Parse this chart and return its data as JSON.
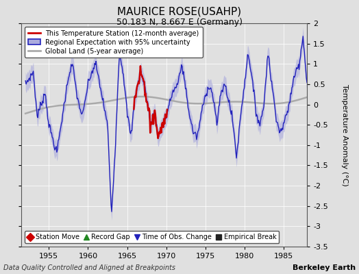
{
  "title": "MAURICE ROSE(USAHP)",
  "subtitle": "50.183 N, 8.667 E (Germany)",
  "ylabel": "Temperature Anomaly (°C)",
  "footer_left": "Data Quality Controlled and Aligned at Breakpoints",
  "footer_right": "Berkeley Earth",
  "xlim": [
    1951.5,
    1988.0
  ],
  "ylim": [
    -3.5,
    2.0
  ],
  "yticks": [
    -3.5,
    -3.0,
    -2.5,
    -2.0,
    -1.5,
    -1.0,
    -0.5,
    0.0,
    0.5,
    1.0,
    1.5,
    2.0
  ],
  "xticks": [
    1955,
    1960,
    1965,
    1970,
    1975,
    1980,
    1985
  ],
  "bg_color": "#e0e0e0",
  "plot_bg": "#e0e0e0",
  "regional_color": "#2222bb",
  "regional_fill": "#aaaadd",
  "station_color": "#cc0000",
  "global_color": "#aaaaaa",
  "legend_items": [
    {
      "label": "This Temperature Station (12-month average)",
      "color": "#cc0000"
    },
    {
      "label": "Regional Expectation with 95% uncertainty",
      "color": "#2222bb",
      "fill": "#aaaadd"
    },
    {
      "label": "Global Land (5-year average)",
      "color": "#aaaaaa"
    }
  ],
  "marker_items": [
    {
      "label": "Station Move",
      "color": "#cc0000",
      "marker": "D"
    },
    {
      "label": "Record Gap",
      "color": "#228822",
      "marker": "^"
    },
    {
      "label": "Time of Obs. Change",
      "color": "#2222bb",
      "marker": "v"
    },
    {
      "label": "Empirical Break",
      "color": "#222222",
      "marker": "s"
    }
  ]
}
